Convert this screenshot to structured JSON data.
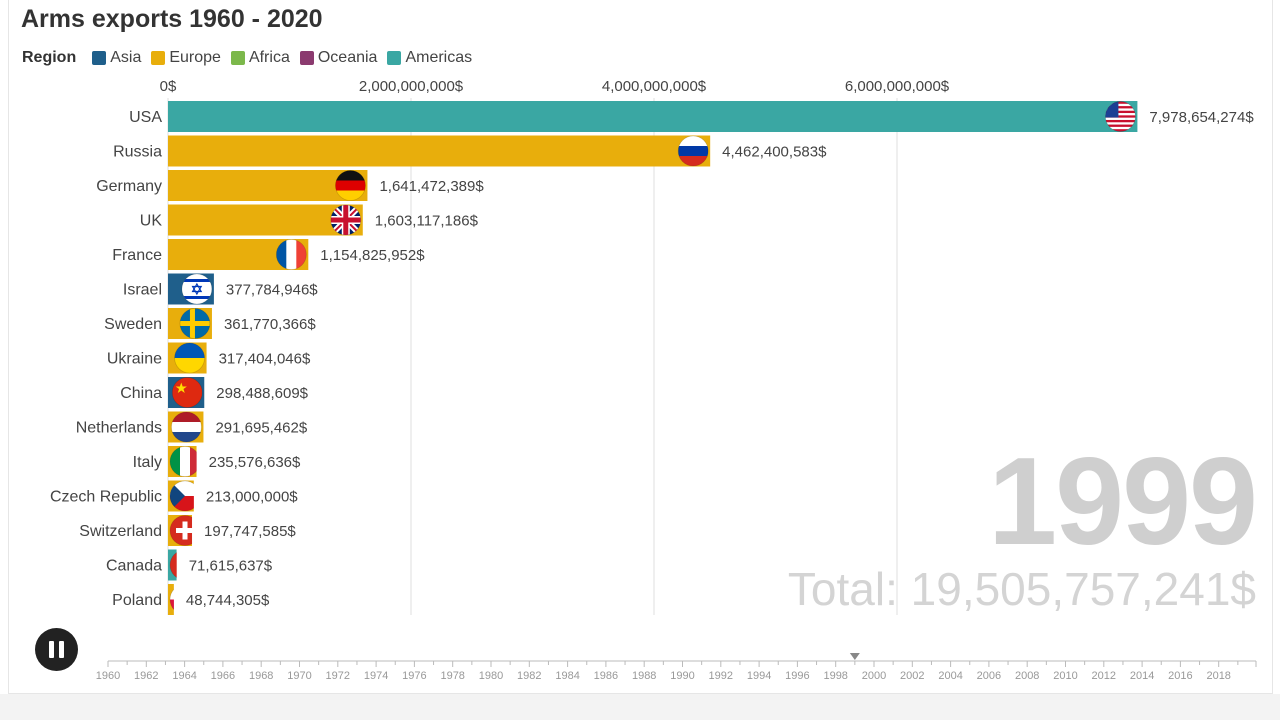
{
  "title": "Arms exports 1960 - 2020",
  "legend": {
    "title": "Region",
    "items": [
      {
        "label": "Asia",
        "color": "#1f5f8b"
      },
      {
        "label": "Europe",
        "color": "#e8ae0c"
      },
      {
        "label": "Africa",
        "color": "#7cb84b"
      },
      {
        "label": "Oceania",
        "color": "#8b3a6f"
      },
      {
        "label": "Americas",
        "color": "#3aa7a3"
      }
    ]
  },
  "year": "1999",
  "total_text": "Total: 19,505,757,241$",
  "controls": {
    "play_state": "pause-icon"
  },
  "chart_data": {
    "type": "bar",
    "orientation": "horizontal",
    "title": "Arms exports 1960 - 2020",
    "xlim": [
      0,
      8000000000
    ],
    "x_ticks": [
      0,
      2000000000,
      4000000000,
      6000000000
    ],
    "x_tick_labels": [
      "0$",
      "2,000,000,000$",
      "4,000,000,000$",
      "6,000,000,000$"
    ],
    "grid": true,
    "legend_position": "top-left",
    "categories": [
      "USA",
      "Russia",
      "Germany",
      "UK",
      "France",
      "Israel",
      "Sweden",
      "Ukraine",
      "China",
      "Netherlands",
      "Italy",
      "Czech Republic",
      "Switzerland",
      "Canada",
      "Poland"
    ],
    "values": [
      7978654274,
      4462400583,
      1641472389,
      1603117186,
      1154825952,
      377784946,
      361770366,
      317404046,
      298488609,
      291695462,
      235576636,
      213000000,
      197747585,
      71615637,
      48744305
    ],
    "value_labels": [
      "7,978,654,274$",
      "4,462,400,583$",
      "1,641,472,389$",
      "1,603,117,186$",
      "1,154,825,952$",
      "377,784,946$",
      "361,770,366$",
      "317,404,046$",
      "298,488,609$",
      "291,695,462$",
      "235,576,636$",
      "213,000,000$",
      "197,747,585$",
      "71,615,637$",
      "48,744,305$"
    ],
    "regions": [
      "Americas",
      "Europe",
      "Europe",
      "Europe",
      "Europe",
      "Asia",
      "Europe",
      "Europe",
      "Asia",
      "Europe",
      "Europe",
      "Europe",
      "Europe",
      "Americas",
      "Europe"
    ],
    "flags": [
      "usa-flag-icon",
      "russia-flag-icon",
      "germany-flag-icon",
      "uk-flag-icon",
      "france-flag-icon",
      "israel-flag-icon",
      "sweden-flag-icon",
      "ukraine-flag-icon",
      "china-flag-icon",
      "netherlands-flag-icon",
      "italy-flag-icon",
      "czech-republic-flag-icon",
      "switzerland-flag-icon",
      "canada-flag-icon",
      "poland-flag-icon"
    ],
    "timeline": {
      "start": 1960,
      "end": 2018,
      "step": 2,
      "current": 1999,
      "labels": [
        "1960",
        "1962",
        "1964",
        "1966",
        "1968",
        "1970",
        "1972",
        "1974",
        "1976",
        "1978",
        "1980",
        "1982",
        "1984",
        "1986",
        "1988",
        "1990",
        "1992",
        "1994",
        "1996",
        "1998",
        "2000",
        "2002",
        "2004",
        "2006",
        "2008",
        "2010",
        "2012",
        "2014",
        "2016",
        "2018"
      ]
    }
  }
}
